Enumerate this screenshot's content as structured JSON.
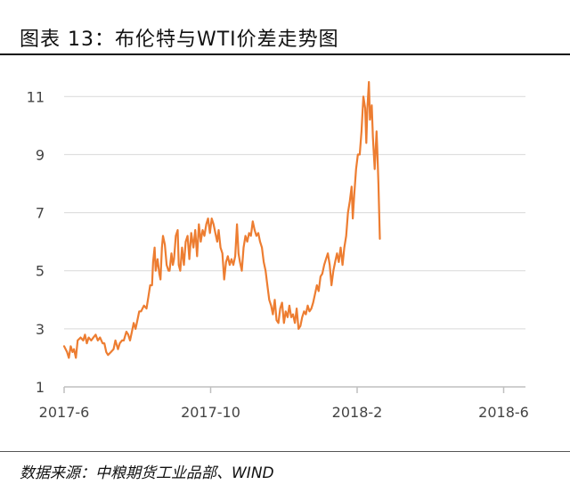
{
  "figure": {
    "title": "图表 13：布伦特与WTI价差走势图",
    "source": "数据来源：中粮期货工业品部、WIND"
  },
  "chart_data": {
    "type": "line",
    "title": "",
    "xlabel": "",
    "ylabel": "",
    "ylim": [
      1,
      11.5
    ],
    "yticks": [
      1,
      3,
      5,
      7,
      9,
      11
    ],
    "xlim": [
      "2017-06",
      "2018-07"
    ],
    "xticks": [
      "2017-6",
      "2017-10",
      "2018-2",
      "2018-6"
    ],
    "grid": "horizontal",
    "legend": "none",
    "line_color": "#ED7D31",
    "series": [
      {
        "values": [
          [
            0.0,
            2.4
          ],
          [
            0.08,
            2.2
          ],
          [
            0.13,
            2.0
          ],
          [
            0.18,
            2.4
          ],
          [
            0.23,
            2.2
          ],
          [
            0.27,
            2.3
          ],
          [
            0.32,
            2.0
          ],
          [
            0.37,
            2.6
          ],
          [
            0.45,
            2.7
          ],
          [
            0.52,
            2.6
          ],
          [
            0.57,
            2.8
          ],
          [
            0.62,
            2.5
          ],
          [
            0.67,
            2.7
          ],
          [
            0.74,
            2.6
          ],
          [
            0.8,
            2.7
          ],
          [
            0.86,
            2.8
          ],
          [
            0.92,
            2.6
          ],
          [
            0.98,
            2.7
          ],
          [
            1.05,
            2.5
          ],
          [
            1.1,
            2.5
          ],
          [
            1.15,
            2.2
          ],
          [
            1.2,
            2.1
          ],
          [
            1.28,
            2.2
          ],
          [
            1.35,
            2.3
          ],
          [
            1.4,
            2.6
          ],
          [
            1.47,
            2.3
          ],
          [
            1.52,
            2.5
          ],
          [
            1.58,
            2.6
          ],
          [
            1.63,
            2.6
          ],
          [
            1.7,
            2.9
          ],
          [
            1.75,
            2.8
          ],
          [
            1.8,
            2.6
          ],
          [
            1.85,
            2.9
          ],
          [
            1.9,
            3.2
          ],
          [
            1.95,
            3.0
          ],
          [
            2.0,
            3.3
          ],
          [
            2.05,
            3.6
          ],
          [
            2.1,
            3.6
          ],
          [
            2.18,
            3.8
          ],
          [
            2.25,
            3.7
          ],
          [
            2.3,
            4.1
          ],
          [
            2.35,
            4.5
          ],
          [
            2.4,
            4.5
          ],
          [
            2.43,
            5.3
          ],
          [
            2.47,
            5.8
          ],
          [
            2.5,
            5.0
          ],
          [
            2.55,
            5.4
          ],
          [
            2.6,
            4.9
          ],
          [
            2.63,
            4.7
          ],
          [
            2.67,
            5.8
          ],
          [
            2.7,
            6.2
          ],
          [
            2.75,
            5.9
          ],
          [
            2.8,
            5.2
          ],
          [
            2.85,
            5.0
          ],
          [
            2.88,
            5.0
          ],
          [
            2.93,
            5.6
          ],
          [
            2.97,
            5.2
          ],
          [
            3.0,
            5.4
          ],
          [
            3.05,
            6.2
          ],
          [
            3.1,
            6.4
          ],
          [
            3.13,
            5.2
          ],
          [
            3.17,
            5.0
          ],
          [
            3.22,
            5.8
          ],
          [
            3.27,
            5.2
          ],
          [
            3.32,
            6.0
          ],
          [
            3.37,
            6.2
          ],
          [
            3.42,
            5.4
          ],
          [
            3.47,
            6.3
          ],
          [
            3.53,
            5.8
          ],
          [
            3.58,
            6.4
          ],
          [
            3.63,
            5.5
          ],
          [
            3.68,
            6.6
          ],
          [
            3.73,
            6.0
          ],
          [
            3.78,
            6.4
          ],
          [
            3.83,
            6.2
          ],
          [
            3.88,
            6.6
          ],
          [
            3.93,
            6.8
          ],
          [
            3.98,
            6.3
          ],
          [
            4.03,
            6.8
          ],
          [
            4.08,
            6.6
          ],
          [
            4.13,
            6.3
          ],
          [
            4.18,
            6.0
          ],
          [
            4.22,
            6.4
          ],
          [
            4.27,
            5.8
          ],
          [
            4.32,
            5.6
          ],
          [
            4.37,
            4.7
          ],
          [
            4.42,
            5.3
          ],
          [
            4.47,
            5.5
          ],
          [
            4.52,
            5.2
          ],
          [
            4.57,
            5.4
          ],
          [
            4.62,
            5.2
          ],
          [
            4.67,
            5.5
          ],
          [
            4.72,
            6.6
          ],
          [
            4.76,
            5.6
          ],
          [
            4.8,
            5.3
          ],
          [
            4.85,
            5.0
          ],
          [
            4.9,
            5.8
          ],
          [
            4.95,
            6.2
          ],
          [
            5.0,
            6.0
          ],
          [
            5.05,
            6.3
          ],
          [
            5.1,
            6.2
          ],
          [
            5.15,
            6.7
          ],
          [
            5.2,
            6.4
          ],
          [
            5.25,
            6.2
          ],
          [
            5.3,
            6.3
          ],
          [
            5.35,
            6.0
          ],
          [
            5.4,
            5.8
          ],
          [
            5.45,
            5.3
          ],
          [
            5.5,
            5.0
          ],
          [
            5.55,
            4.5
          ],
          [
            5.6,
            4.0
          ],
          [
            5.65,
            3.8
          ],
          [
            5.7,
            3.5
          ],
          [
            5.75,
            4.0
          ],
          [
            5.8,
            3.3
          ],
          [
            5.85,
            3.2
          ],
          [
            5.9,
            3.7
          ],
          [
            5.95,
            3.9
          ],
          [
            6.0,
            3.2
          ],
          [
            6.05,
            3.6
          ],
          [
            6.1,
            3.4
          ],
          [
            6.15,
            3.8
          ],
          [
            6.2,
            3.4
          ],
          [
            6.25,
            3.5
          ],
          [
            6.3,
            3.2
          ],
          [
            6.35,
            3.7
          ],
          [
            6.4,
            3.0
          ],
          [
            6.45,
            3.1
          ],
          [
            6.5,
            3.4
          ],
          [
            6.55,
            3.6
          ],
          [
            6.6,
            3.5
          ],
          [
            6.65,
            3.8
          ],
          [
            6.7,
            3.6
          ],
          [
            6.75,
            3.7
          ],
          [
            6.8,
            3.9
          ],
          [
            6.85,
            4.2
          ],
          [
            6.9,
            4.5
          ],
          [
            6.95,
            4.3
          ],
          [
            7.0,
            4.8
          ],
          [
            7.05,
            4.9
          ],
          [
            7.1,
            5.2
          ],
          [
            7.15,
            5.4
          ],
          [
            7.2,
            5.6
          ],
          [
            7.25,
            5.2
          ],
          [
            7.3,
            4.5
          ],
          [
            7.35,
            5.0
          ],
          [
            7.4,
            5.3
          ],
          [
            7.45,
            5.6
          ],
          [
            7.5,
            5.3
          ],
          [
            7.55,
            5.8
          ],
          [
            7.6,
            5.2
          ],
          [
            7.65,
            5.8
          ],
          [
            7.7,
            6.2
          ],
          [
            7.75,
            7.0
          ],
          [
            7.8,
            7.4
          ],
          [
            7.85,
            7.9
          ],
          [
            7.88,
            6.8
          ],
          [
            7.92,
            7.6
          ],
          [
            7.97,
            8.5
          ],
          [
            8.02,
            9.0
          ],
          [
            8.07,
            9.0
          ],
          [
            8.12,
            9.8
          ],
          [
            8.17,
            11.0
          ],
          [
            8.22,
            10.6
          ],
          [
            8.25,
            9.4
          ],
          [
            8.28,
            10.6
          ],
          [
            8.32,
            11.5
          ],
          [
            8.35,
            10.2
          ],
          [
            8.4,
            10.7
          ],
          [
            8.43,
            9.6
          ],
          [
            8.48,
            8.5
          ],
          [
            8.53,
            9.8
          ],
          [
            8.55,
            9.2
          ],
          [
            8.58,
            8.0
          ],
          [
            8.62,
            6.1
          ]
        ]
      }
    ]
  }
}
